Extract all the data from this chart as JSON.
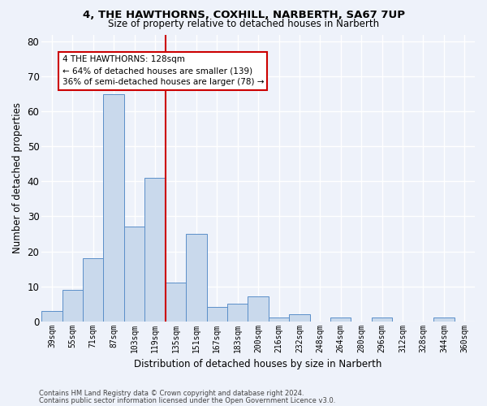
{
  "title1": "4, THE HAWTHORNS, COXHILL, NARBERTH, SA67 7UP",
  "title2": "Size of property relative to detached houses in Narberth",
  "xlabel": "Distribution of detached houses by size in Narberth",
  "ylabel": "Number of detached properties",
  "categories": [
    "39sqm",
    "55sqm",
    "71sqm",
    "87sqm",
    "103sqm",
    "119sqm",
    "135sqm",
    "151sqm",
    "167sqm",
    "183sqm",
    "200sqm",
    "216sqm",
    "232sqm",
    "248sqm",
    "264sqm",
    "280sqm",
    "296sqm",
    "312sqm",
    "328sqm",
    "344sqm",
    "360sqm"
  ],
  "values": [
    3,
    9,
    18,
    65,
    27,
    41,
    11,
    25,
    4,
    5,
    7,
    1,
    2,
    0,
    1,
    0,
    1,
    0,
    0,
    1,
    0
  ],
  "bar_color": "#c9d9ec",
  "bar_edge_color": "#5b8fc9",
  "vline_x": 6.0,
  "vline_color": "#cc0000",
  "annotation_text": "4 THE HAWTHORNS: 128sqm\n← 64% of detached houses are smaller (139)\n36% of semi-detached houses are larger (78) →",
  "annotation_box_color": "#ffffff",
  "annotation_box_edge": "#cc0000",
  "ylim": [
    0,
    82
  ],
  "yticks": [
    0,
    10,
    20,
    30,
    40,
    50,
    60,
    70,
    80
  ],
  "background_color": "#eef2fa",
  "grid_color": "#ffffff",
  "footer1": "Contains HM Land Registry data © Crown copyright and database right 2024.",
  "footer2": "Contains public sector information licensed under the Open Government Licence v3.0."
}
